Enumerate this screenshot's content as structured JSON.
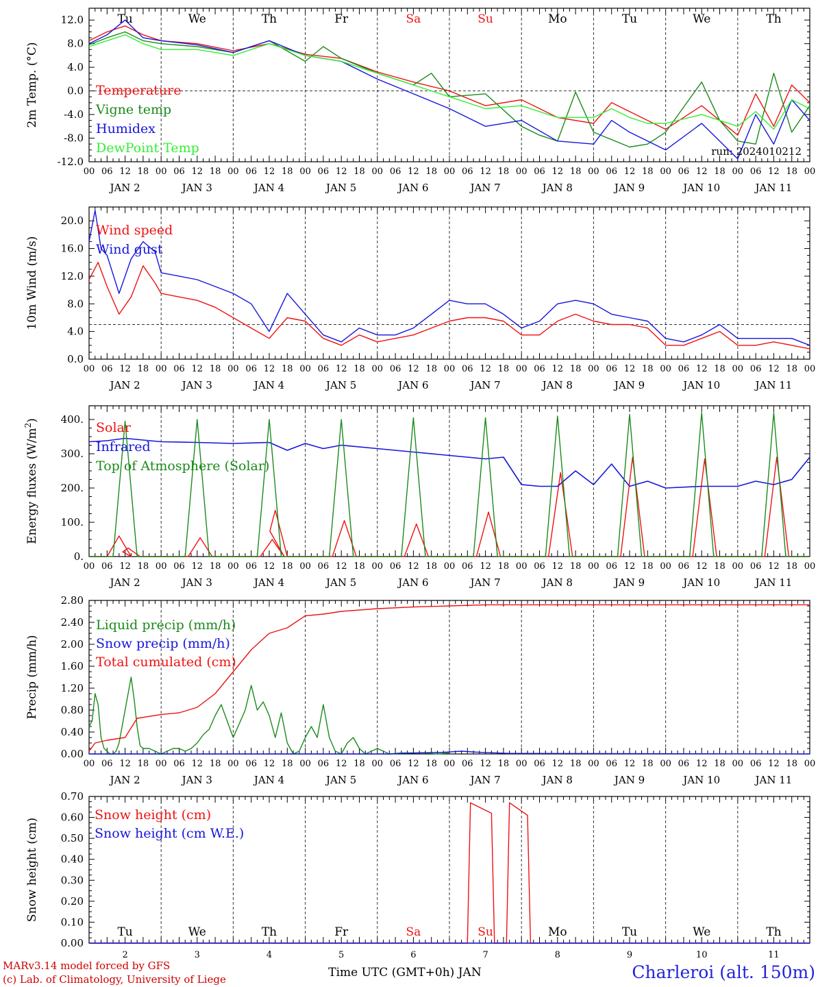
{
  "station_label": "Charleroi (alt. 150m)",
  "credits": [
    "MARv3.14 model forced by GFS",
    "(c) Lab. of Climatology, University of Liege"
  ],
  "run_label": "run: 2024010212",
  "x_axis": {
    "title": "Time UTC (GMT+0h) JAN",
    "hour_labels": [
      "00",
      "06",
      "12",
      "18"
    ],
    "days": [
      {
        "dow": "Tu",
        "date": "JAN  2",
        "num": "2",
        "weekend": false
      },
      {
        "dow": "We",
        "date": "JAN  3",
        "num": "3",
        "weekend": false
      },
      {
        "dow": "Th",
        "date": "JAN  4",
        "num": "4",
        "weekend": false
      },
      {
        "dow": "Fr",
        "date": "JAN  5",
        "num": "5",
        "weekend": false
      },
      {
        "dow": "Sa",
        "date": "JAN  6",
        "num": "6",
        "weekend": true
      },
      {
        "dow": "Su",
        "date": "JAN  7",
        "num": "7",
        "weekend": true
      },
      {
        "dow": "Mo",
        "date": "JAN  8",
        "num": "8",
        "weekend": false
      },
      {
        "dow": "Tu",
        "date": "JAN  9",
        "num": "9",
        "weekend": false
      },
      {
        "dow": "We",
        "date": "JAN 10",
        "num": "10",
        "weekend": false
      },
      {
        "dow": "Th",
        "date": "JAN 11",
        "num": "11",
        "weekend": false
      }
    ]
  },
  "colors": {
    "red": "#ee1111",
    "green": "#1a8a1a",
    "blue": "#1515dd",
    "lightgreen": "#33ee33",
    "weekend": "#ee1111",
    "grid": "#333333"
  },
  "chart_data": [
    {
      "type": "line",
      "ylabel": "2m Temp. (°C)",
      "ylim": [
        -12,
        14
      ],
      "yticks": [
        12,
        8,
        4,
        0,
        -4,
        -8,
        -12
      ],
      "ytick_labels": [
        "12.0",
        "8.0",
        "4.0",
        "0.0",
        "-4.0",
        "-8.0",
        "-12.0"
      ],
      "reference_line": 0,
      "x_unit": "hours since JAN 2 00 UTC",
      "series": [
        {
          "name": "Temperature",
          "color": "red",
          "x": [
            0,
            6,
            12,
            18,
            24,
            36,
            48,
            60,
            72,
            84,
            96,
            108,
            120,
            132,
            144,
            156,
            168,
            174,
            180,
            186,
            192,
            204,
            216,
            222,
            228,
            234,
            240
          ],
          "values": [
            8.5,
            10.0,
            11.0,
            9.5,
            8.5,
            8.0,
            6.8,
            8.0,
            6.2,
            5.5,
            3.2,
            1.5,
            0.0,
            -2.5,
            -1.5,
            -4.5,
            -5.5,
            -2.0,
            -3.5,
            -5.0,
            -6.5,
            -2.5,
            -7.5,
            -0.5,
            -6.0,
            1.0,
            -2.0
          ]
        },
        {
          "name": "Vigne temp",
          "color": "green",
          "x": [
            0,
            6,
            12,
            18,
            24,
            36,
            48,
            60,
            72,
            78,
            84,
            96,
            108,
            114,
            120,
            132,
            144,
            150,
            156,
            162,
            168,
            180,
            186,
            192,
            204,
            210,
            216,
            222,
            228,
            234,
            240
          ],
          "values": [
            7.8,
            9.0,
            10.0,
            8.5,
            8.0,
            7.5,
            6.5,
            8.5,
            5.0,
            7.5,
            5.5,
            3.0,
            1.0,
            3.0,
            -1.0,
            -0.5,
            -6.0,
            -7.5,
            -8.5,
            -0.2,
            -7.0,
            -9.5,
            -9.0,
            -7.0,
            1.5,
            -5.0,
            -8.5,
            -9.0,
            3.0,
            -7.0,
            -2.5
          ]
        },
        {
          "name": "Humidex",
          "color": "blue",
          "x": [
            0,
            6,
            12,
            18,
            24,
            36,
            48,
            60,
            72,
            84,
            96,
            108,
            120,
            132,
            144,
            156,
            168,
            174,
            180,
            186,
            192,
            204,
            216,
            222,
            228,
            234,
            240
          ],
          "values": [
            8.0,
            9.5,
            12.0,
            9.0,
            8.5,
            7.8,
            6.5,
            8.5,
            6.0,
            5.0,
            2.0,
            -0.5,
            -3.0,
            -6.0,
            -5.0,
            -8.5,
            -9.0,
            -5.0,
            -7.0,
            -8.5,
            -10.0,
            -5.5,
            -11.5,
            -4.0,
            -9.0,
            -1.5,
            -5.0
          ]
        },
        {
          "name": "DewPoint Temp",
          "color": "lightgreen",
          "x": [
            0,
            6,
            12,
            18,
            24,
            36,
            48,
            60,
            72,
            84,
            96,
            108,
            120,
            132,
            144,
            156,
            168,
            174,
            180,
            186,
            192,
            204,
            216,
            222,
            228,
            234,
            240
          ],
          "values": [
            7.5,
            8.5,
            9.5,
            8.0,
            7.0,
            7.0,
            6.0,
            8.0,
            6.0,
            5.0,
            3.0,
            1.0,
            -1.0,
            -3.0,
            -2.5,
            -4.5,
            -4.5,
            -3.0,
            -4.5,
            -5.5,
            -5.5,
            -4.0,
            -6.0,
            -3.5,
            -6.5,
            -1.5,
            -3.0
          ]
        }
      ]
    },
    {
      "type": "line",
      "ylabel": "10m Wind (m/s)",
      "ylim": [
        0,
        22
      ],
      "yticks": [
        20,
        16,
        12,
        8,
        4,
        0
      ],
      "ytick_labels": [
        "20.0",
        "16.0",
        "12.0",
        "8.0",
        "4.0",
        "0.0"
      ],
      "reference_line": 5,
      "x_unit": "hours since JAN 2 00 UTC",
      "series": [
        {
          "name": "Wind speed",
          "color": "red",
          "x": [
            0,
            3,
            6,
            10,
            14,
            18,
            22,
            24,
            30,
            36,
            42,
            48,
            54,
            60,
            66,
            72,
            78,
            84,
            90,
            96,
            102,
            108,
            114,
            120,
            126,
            132,
            138,
            144,
            150,
            156,
            162,
            168,
            174,
            180,
            186,
            192,
            198,
            204,
            210,
            216,
            222,
            228,
            234,
            240
          ],
          "values": [
            11.5,
            14.0,
            10.5,
            6.5,
            9.0,
            13.5,
            11.0,
            9.5,
            9.0,
            8.5,
            7.5,
            6.0,
            4.5,
            3.0,
            6.0,
            5.5,
            3.0,
            2.0,
            3.5,
            2.5,
            3.0,
            3.5,
            4.5,
            5.5,
            6.0,
            6.0,
            5.5,
            3.5,
            3.5,
            5.5,
            6.5,
            5.5,
            5.0,
            5.0,
            4.5,
            2.0,
            2.0,
            3.0,
            4.0,
            2.0,
            2.0,
            2.5,
            2.0,
            1.5
          ]
        },
        {
          "name": "Wind gust",
          "color": "blue",
          "x": [
            0,
            2,
            4,
            6,
            10,
            14,
            18,
            22,
            24,
            30,
            36,
            42,
            48,
            54,
            60,
            66,
            72,
            78,
            84,
            90,
            96,
            102,
            108,
            114,
            120,
            126,
            132,
            138,
            144,
            150,
            156,
            162,
            168,
            174,
            180,
            186,
            192,
            198,
            204,
            210,
            216,
            222,
            228,
            234,
            240
          ],
          "values": [
            17.0,
            21.5,
            16.0,
            15.0,
            9.5,
            14.5,
            17.0,
            15.5,
            12.5,
            12.0,
            11.5,
            10.5,
            9.5,
            8.0,
            4.0,
            9.5,
            6.5,
            3.5,
            2.5,
            4.5,
            3.5,
            3.5,
            4.5,
            6.5,
            8.5,
            8.0,
            8.0,
            6.5,
            4.5,
            5.5,
            8.0,
            8.5,
            8.0,
            6.5,
            6.0,
            5.5,
            3.0,
            2.5,
            3.5,
            5.0,
            3.0,
            3.0,
            3.0,
            3.0,
            2.0
          ]
        }
      ]
    },
    {
      "type": "line",
      "ylabel": "Energy fluxes (W/m2)",
      "ylim": [
        0,
        440
      ],
      "yticks": [
        400,
        300,
        200,
        100,
        0
      ],
      "ytick_labels": [
        "400.",
        "300.",
        "200.",
        "100.",
        "0."
      ],
      "x_unit": "hours since JAN 2 00 UTC",
      "series": [
        {
          "name": "Solar",
          "color": "red",
          "peaks_x": [
            10,
            13,
            37,
            61,
            62,
            85,
            109,
            133,
            157,
            181,
            205,
            229
          ],
          "peaks_value": [
            60,
            25,
            55,
            50,
            135,
            105,
            95,
            130,
            245,
            290,
            285,
            290
          ],
          "half_width_hours": 4
        },
        {
          "name": "Infrared",
          "color": "blue",
          "x": [
            0,
            6,
            12,
            18,
            24,
            36,
            48,
            60,
            66,
            72,
            78,
            84,
            96,
            108,
            120,
            132,
            138,
            144,
            150,
            156,
            162,
            168,
            174,
            180,
            186,
            192,
            204,
            216,
            222,
            228,
            234,
            240
          ],
          "values": [
            335,
            338,
            345,
            340,
            335,
            333,
            330,
            333,
            310,
            330,
            315,
            325,
            315,
            305,
            295,
            285,
            290,
            210,
            205,
            205,
            250,
            210,
            270,
            205,
            220,
            200,
            205,
            205,
            220,
            210,
            225,
            290
          ]
        },
        {
          "name": "Top of Atmosphere (Solar)",
          "color": "green",
          "peaks_x": [
            12,
            36,
            60,
            84,
            108,
            132,
            156,
            180,
            204,
            228
          ],
          "peaks_value": [
            395,
            400,
            400,
            400,
            405,
            405,
            410,
            415,
            420,
            420
          ],
          "half_width_hours": 4
        }
      ]
    },
    {
      "type": "line",
      "ylabel": "Precip (mm/h)",
      "ylim": [
        0,
        2.8
      ],
      "yticks": [
        2.8,
        2.4,
        2.0,
        1.6,
        1.2,
        0.8,
        0.4,
        0.0
      ],
      "ytick_labels": [
        "2.80",
        "2.40",
        "2.00",
        "1.60",
        "1.20",
        "0.80",
        "0.40",
        "0.00"
      ],
      "x_unit": "hours since JAN 2 00 UTC",
      "series": [
        {
          "name": "Liquid precip (mm/h)",
          "color": "green",
          "x": [
            0,
            1,
            2,
            3,
            4,
            5,
            6,
            7,
            8,
            9,
            10,
            11,
            12,
            13,
            14,
            15,
            16,
            17,
            18,
            20,
            22,
            24,
            26,
            28,
            30,
            32,
            34,
            36,
            38,
            40,
            42,
            44,
            46,
            48,
            50,
            52,
            54,
            56,
            58,
            60,
            62,
            64,
            66,
            68,
            70,
            72,
            74,
            76,
            78,
            80,
            82,
            84,
            86,
            88,
            90,
            92,
            96,
            100,
            104,
            108,
            112,
            116,
            120
          ],
          "values": [
            0.5,
            0.6,
            1.1,
            0.9,
            0.3,
            0.1,
            0.05,
            0.0,
            0.0,
            0.05,
            0.2,
            0.5,
            0.8,
            1.1,
            1.4,
            1.0,
            0.5,
            0.15,
            0.1,
            0.1,
            0.05,
            0.0,
            0.05,
            0.1,
            0.1,
            0.05,
            0.1,
            0.2,
            0.35,
            0.45,
            0.7,
            0.9,
            0.6,
            0.3,
            0.55,
            0.8,
            1.25,
            0.8,
            0.95,
            0.7,
            0.3,
            0.75,
            0.2,
            0.0,
            0.05,
            0.3,
            0.5,
            0.3,
            0.9,
            0.3,
            0.05,
            0.0,
            0.2,
            0.3,
            0.1,
            0.0,
            0.1,
            0.0,
            0.02,
            0.02,
            0.02,
            0.0,
            0.02
          ]
        },
        {
          "name": "Snow precip (mm/h)",
          "color": "blue",
          "x": [
            0,
            100,
            110,
            118,
            124,
            130,
            140,
            240
          ],
          "values": [
            0,
            0,
            0.02,
            0.03,
            0.05,
            0.03,
            0.01,
            0.0
          ]
        },
        {
          "name": "Total cumulated (cm)",
          "color": "red",
          "x": [
            0,
            2,
            6,
            12,
            16,
            24,
            30,
            36,
            42,
            48,
            54,
            60,
            66,
            72,
            78,
            84,
            96,
            108,
            120,
            132,
            144,
            240
          ],
          "values": [
            0.05,
            0.2,
            0.25,
            0.3,
            0.65,
            0.72,
            0.75,
            0.85,
            1.1,
            1.5,
            1.9,
            2.2,
            2.3,
            2.52,
            2.55,
            2.6,
            2.65,
            2.68,
            2.7,
            2.72,
            2.72,
            2.72
          ]
        }
      ]
    },
    {
      "type": "line",
      "ylabel": "Snow height (cm)",
      "ylim": [
        0,
        0.7
      ],
      "yticks": [
        0.7,
        0.6,
        0.5,
        0.4,
        0.3,
        0.2,
        0.1,
        0.0
      ],
      "ytick_labels": [
        "0.70",
        "0.60",
        "0.50",
        "0.40",
        "0.30",
        "0.20",
        "0.10",
        "0.00"
      ],
      "x_unit": "hours since JAN 2 00 UTC",
      "series": [
        {
          "name": "Snow height (cm)",
          "color": "red",
          "x": [
            0,
            126,
            127,
            134,
            135,
            139,
            140,
            146,
            147,
            240
          ],
          "values": [
            0,
            0,
            0.67,
            0.62,
            0,
            0,
            0.67,
            0.61,
            0,
            0
          ]
        },
        {
          "name": "Snow height (cm W.E.)",
          "color": "blue",
          "x": [
            0,
            240
          ],
          "values": [
            0,
            0
          ]
        }
      ]
    }
  ]
}
